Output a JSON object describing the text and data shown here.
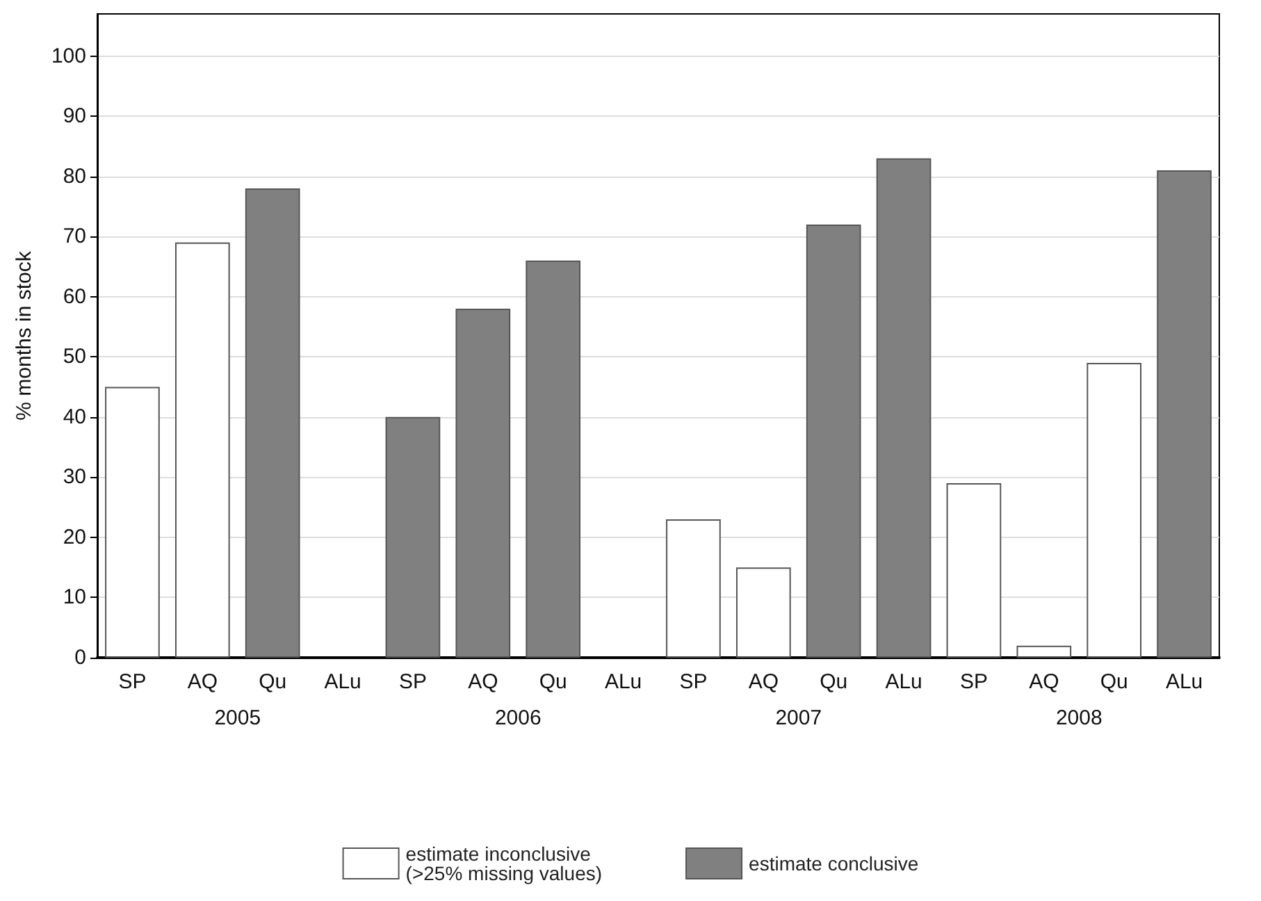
{
  "chart_data": {
    "type": "bar",
    "ylabel": "% months in stock",
    "categories": [
      "SP",
      "AQ",
      "Qu",
      "ALu",
      "SP",
      "AQ",
      "Qu",
      "ALu",
      "SP",
      "AQ",
      "Qu",
      "ALu",
      "SP",
      "AQ",
      "Qu",
      "ALu"
    ],
    "series": [
      {
        "name": "estimate inconclusive (>25% missing values)",
        "color": "#ffffff",
        "values": [
          45,
          69,
          null,
          null,
          null,
          null,
          null,
          null,
          23,
          15,
          null,
          null,
          29,
          2,
          49,
          null
        ]
      },
      {
        "name": "estimate conclusive",
        "color": "#808080",
        "values": [
          null,
          null,
          78,
          null,
          40,
          58,
          66,
          null,
          null,
          null,
          72,
          83,
          null,
          null,
          null,
          81
        ]
      }
    ],
    "annotations": [
      "2005",
      "2006",
      "2007",
      "2008"
    ],
    "ylim": [
      0,
      107
    ],
    "yticks": [
      0,
      10,
      20,
      30,
      40,
      50,
      60,
      70,
      80,
      90,
      100
    ],
    "grid": "y",
    "legend": "bottom"
  }
}
